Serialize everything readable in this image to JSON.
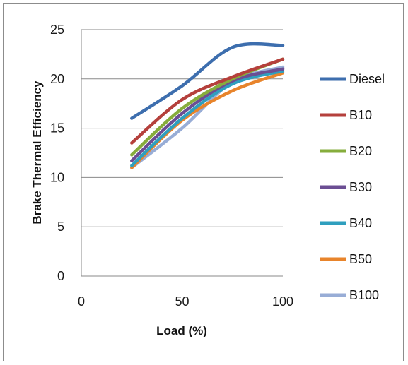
{
  "chart_data": {
    "type": "line",
    "title": "",
    "xlabel": "Load (%)",
    "ylabel": "Brake Thermal Efficiency",
    "xlim": [
      0,
      100
    ],
    "ylim": [
      0,
      25
    ],
    "x_ticks": [
      "0",
      "50",
      "100"
    ],
    "y_ticks": [
      "0",
      "5",
      "10",
      "15",
      "20",
      "25"
    ],
    "grid": "horizontal",
    "legend_position": "right",
    "x": [
      25,
      50,
      75,
      100
    ],
    "series": [
      {
        "name": "Diesel",
        "color": "#3d6eae",
        "values": [
          16.0,
          19.3,
          23.2,
          23.4
        ]
      },
      {
        "name": "B10",
        "color": "#b5403c",
        "values": [
          13.5,
          17.9,
          20.2,
          22.0
        ]
      },
      {
        "name": "B20",
        "color": "#86ad3c",
        "values": [
          12.3,
          17.0,
          20.0,
          22.0
        ]
      },
      {
        "name": "B30",
        "color": "#6b4e93",
        "values": [
          11.7,
          16.5,
          19.8,
          21.0
        ]
      },
      {
        "name": "B40",
        "color": "#2f9fbe",
        "values": [
          11.2,
          16.0,
          19.5,
          20.8
        ]
      },
      {
        "name": "B50",
        "color": "#e8842b",
        "values": [
          11.0,
          15.8,
          18.8,
          20.6
        ]
      },
      {
        "name": "B100",
        "color": "#98add6",
        "values": [
          11.0,
          15.0,
          19.7,
          21.2
        ]
      }
    ]
  }
}
